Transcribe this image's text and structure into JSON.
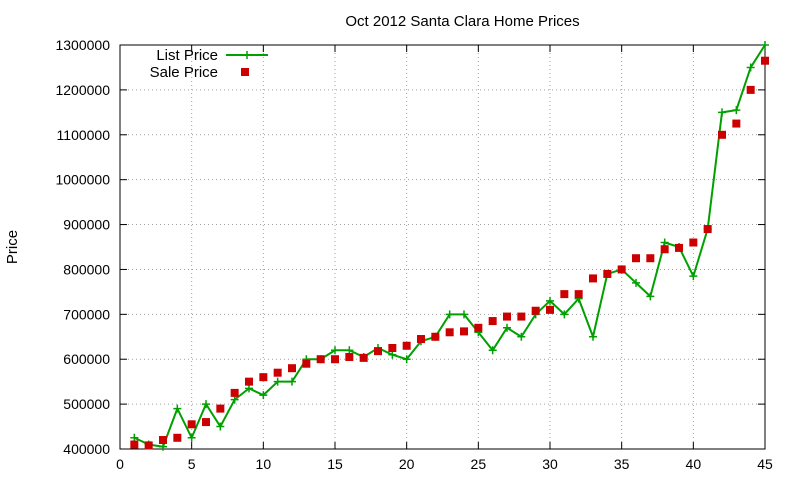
{
  "chart_data": {
    "type": "line",
    "title": "Oct 2012 Santa Clara Home Prices",
    "xlabel": "",
    "ylabel": "Price",
    "xlim": [
      0,
      45
    ],
    "ylim": [
      400000,
      1300000
    ],
    "xticks": [
      0,
      5,
      10,
      15,
      20,
      25,
      30,
      35,
      40,
      45
    ],
    "yticks": [
      400000,
      500000,
      600000,
      700000,
      800000,
      900000,
      1000000,
      1100000,
      1200000,
      1300000
    ],
    "grid": true,
    "legend": "top-left",
    "x": [
      1,
      2,
      3,
      4,
      5,
      6,
      7,
      8,
      9,
      10,
      11,
      12,
      13,
      14,
      15,
      16,
      17,
      18,
      19,
      20,
      21,
      22,
      23,
      24,
      25,
      26,
      27,
      28,
      29,
      30,
      31,
      32,
      33,
      34,
      35,
      36,
      37,
      38,
      39,
      40,
      41,
      42,
      43,
      44,
      45
    ],
    "series": [
      {
        "name": "List Price",
        "style": "line-plus",
        "color": "#00a000",
        "values": [
          425000,
          410000,
          405000,
          490000,
          425000,
          500000,
          450000,
          510000,
          535000,
          520000,
          550000,
          550000,
          600000,
          600000,
          620000,
          620000,
          605000,
          625000,
          610000,
          600000,
          640000,
          650000,
          700000,
          700000,
          660000,
          620000,
          670000,
          650000,
          700000,
          730000,
          700000,
          735000,
          650000,
          790000,
          800000,
          770000,
          740000,
          860000,
          850000,
          785000,
          890000,
          1150000,
          1155000,
          1250000,
          1300000
        ]
      },
      {
        "name": "Sale Price",
        "style": "square",
        "color": "#cc0000",
        "values": [
          410000,
          408000,
          420000,
          425000,
          455000,
          460000,
          490000,
          525000,
          550000,
          560000,
          570000,
          580000,
          590000,
          600000,
          600000,
          605000,
          603000,
          618000,
          625000,
          630000,
          645000,
          650000,
          660000,
          662000,
          670000,
          685000,
          695000,
          695000,
          708000,
          710000,
          745000,
          745000,
          780000,
          790000,
          800000,
          825000,
          825000,
          845000,
          848000,
          860000,
          890000,
          1100000,
          1125000,
          1200000,
          1265000
        ]
      }
    ]
  }
}
